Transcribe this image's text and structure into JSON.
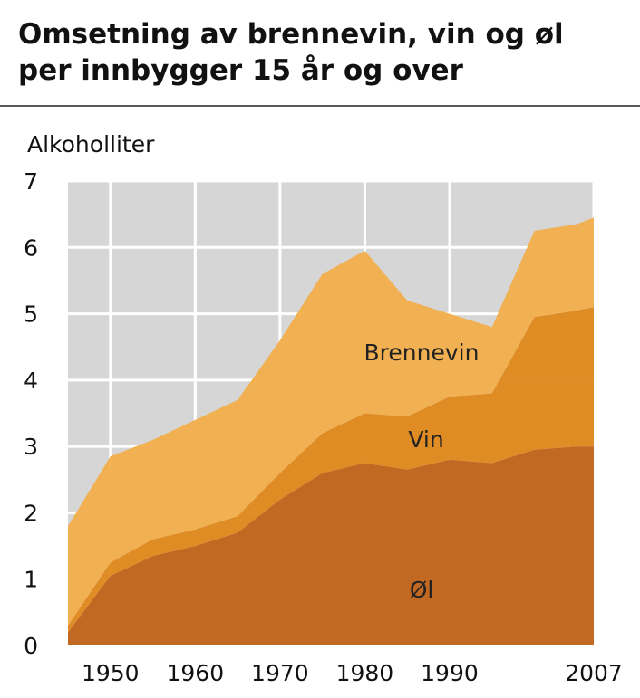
{
  "chart_data": {
    "type": "stacked_area",
    "title": "Omsetning av brennevin, vin og øl per innbygger 15 år og over",
    "y_label": "Alkoholliter",
    "x": [
      1945,
      1950,
      1955,
      1960,
      1965,
      1970,
      1975,
      1980,
      1985,
      1990,
      1995,
      2000,
      2005,
      2007
    ],
    "series": [
      {
        "name": "Øl",
        "color": "#c0651c",
        "values": [
          0.2,
          1.05,
          1.35,
          1.5,
          1.7,
          2.2,
          2.6,
          2.75,
          2.65,
          2.8,
          2.75,
          2.95,
          3.0,
          3.0
        ]
      },
      {
        "name": "Vin",
        "color": "#e0891f",
        "values": [
          0.1,
          0.2,
          0.25,
          0.25,
          0.25,
          0.4,
          0.6,
          0.75,
          0.8,
          0.95,
          1.05,
          2.0,
          2.05,
          2.1
        ]
      },
      {
        "name": "Brennevin",
        "color": "#f2ae4c",
        "values": [
          1.5,
          1.6,
          1.5,
          1.65,
          1.75,
          2.0,
          2.4,
          2.45,
          1.75,
          1.25,
          1.0,
          1.3,
          1.3,
          1.35
        ]
      }
    ],
    "xlim": [
      1945,
      2007
    ],
    "xticks": [
      1950,
      1960,
      1970,
      1980,
      1990,
      2007
    ],
    "ylim": [
      0,
      7
    ],
    "yticks": [
      0,
      1,
      2,
      3,
      4,
      5,
      6,
      7
    ],
    "grid": true
  }
}
